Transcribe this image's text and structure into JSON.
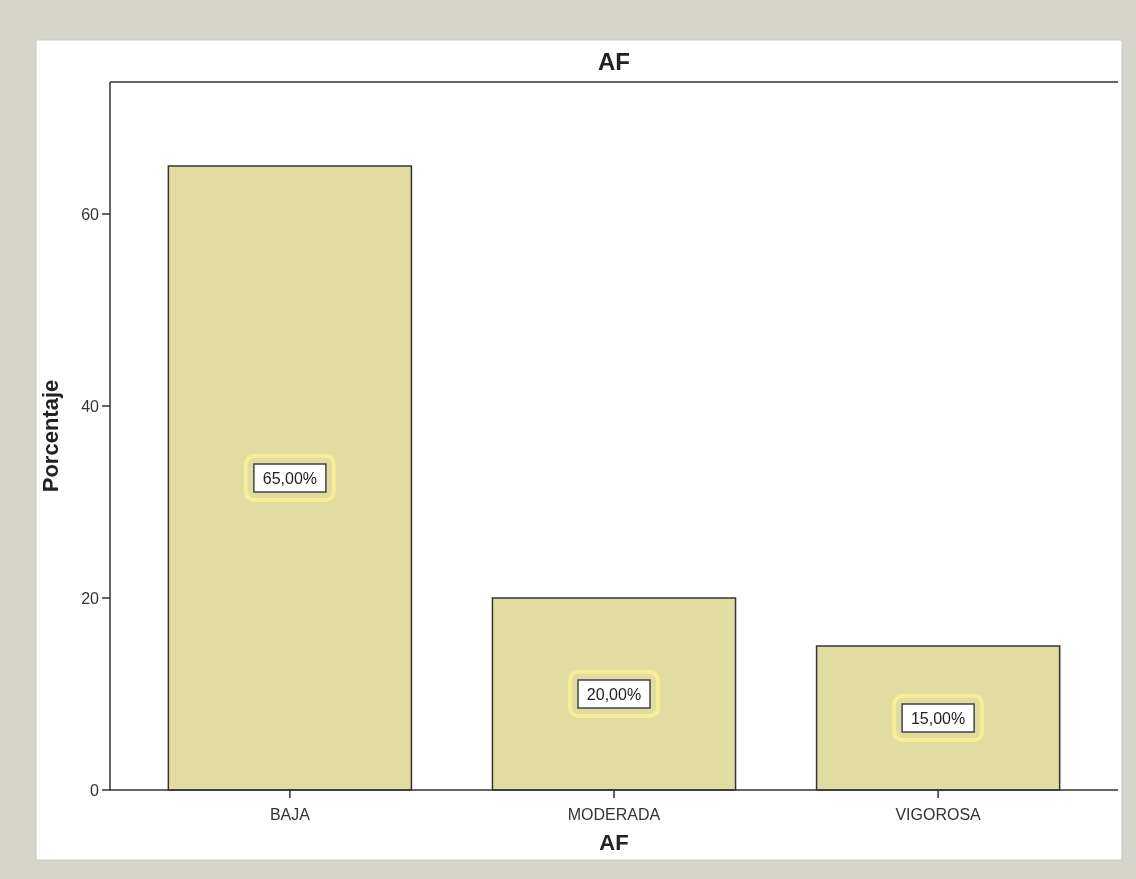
{
  "chart_data": {
    "type": "bar",
    "title": "AF",
    "xlabel": "AF",
    "ylabel": "Porcentaje",
    "categories": [
      "BAJA",
      "MODERADA",
      "VIGOROSA"
    ],
    "values": [
      65,
      20,
      15
    ],
    "value_labels": [
      "65,00%",
      "20,00%",
      "15,00%"
    ],
    "color": "#e0dca2",
    "ylim": [
      0,
      73.75
    ],
    "yticks": [
      0,
      20,
      40,
      60
    ],
    "grid": false
  }
}
